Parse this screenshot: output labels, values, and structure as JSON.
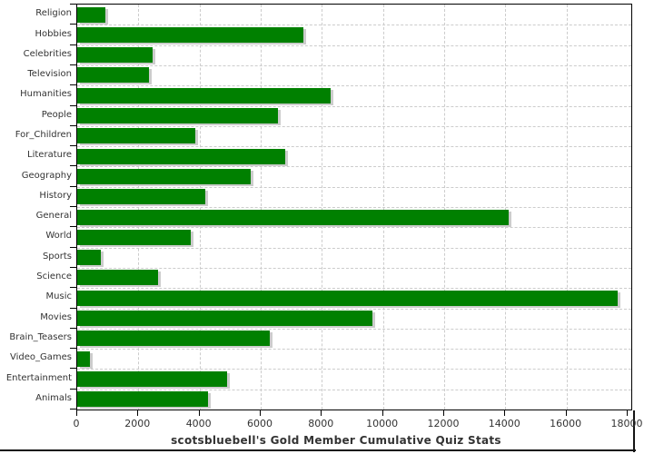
{
  "chart_data": {
    "type": "bar",
    "orientation": "horizontal",
    "title": "scotsbluebell's Gold Member Cumulative Quiz Stats",
    "categories": [
      "Religion",
      "Hobbies",
      "Celebrities",
      "Television",
      "Humanities",
      "People",
      "For_Children",
      "Literature",
      "Geography",
      "History",
      "General",
      "World",
      "Sports",
      "Science",
      "Music",
      "Movies",
      "Brain_Teasers",
      "Video_Games",
      "Entertainment",
      "Animals"
    ],
    "values": [
      920,
      7400,
      2450,
      2350,
      8300,
      6550,
      3850,
      6800,
      5670,
      4190,
      14100,
      3710,
      760,
      2650,
      17660,
      9650,
      6290,
      400,
      4890,
      4270
    ],
    "x_ticks": [
      0,
      2000,
      4000,
      6000,
      8000,
      10000,
      12000,
      14000,
      16000,
      18000
    ],
    "xlim": [
      0,
      18120
    ],
    "xlabel": "",
    "ylabel": "",
    "grid": true,
    "legend": false,
    "colors": {
      "bar": "#008000",
      "bar_shadow": "#cccccc",
      "gridline": "#cccccc",
      "axis": "#000000",
      "text": "#333333",
      "background": "#ffffff"
    }
  }
}
